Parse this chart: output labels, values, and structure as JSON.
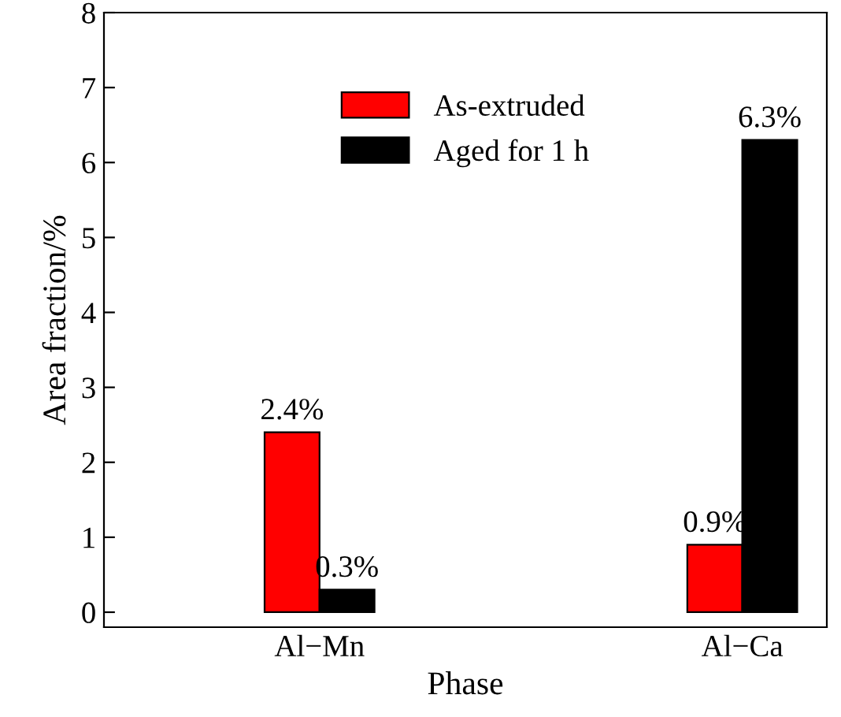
{
  "chart_data": {
    "type": "bar",
    "xlabel": "Phase",
    "ylabel": "Area fraction/%",
    "categories": [
      "Al−Mn",
      "Al−Ca"
    ],
    "series": [
      {
        "name": "As-extruded",
        "color": "#ff0000",
        "values": [
          2.4,
          0.9
        ],
        "value_labels": [
          "2.4%",
          "0.9%"
        ]
      },
      {
        "name": "Aged for 1 h",
        "color": "#000000",
        "values": [
          0.3,
          6.3
        ],
        "value_labels": [
          "0.3%",
          "6.3%"
        ]
      }
    ],
    "ylim": [
      -0.2,
      8
    ],
    "yticks": [
      0,
      1,
      2,
      3,
      4,
      5,
      6,
      7,
      8
    ],
    "grid": false,
    "legend": "top"
  }
}
